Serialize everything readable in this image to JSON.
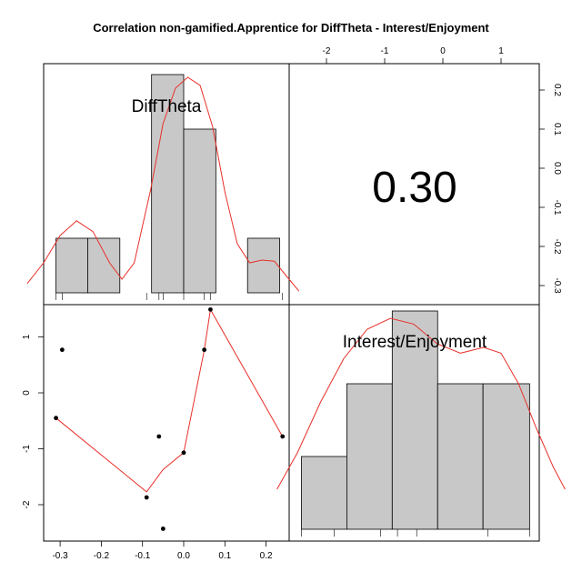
{
  "chart_data": {
    "type": "scatter-matrix",
    "title": "Correlation non-gamified.Apprentice for DiffTheta - Interest/Enjoyment",
    "variables": [
      "DiffTheta",
      "Interest/Enjoyment"
    ],
    "correlation": {
      "label": "0.30",
      "value": 0.3
    },
    "diff_theta_axis": {
      "ticks": [
        -0.3,
        -0.2,
        -0.1,
        0.0,
        0.1,
        0.2
      ],
      "tick_labels": [
        "-0.3",
        "-0.2",
        "-0.1",
        "0.0",
        "0.1",
        "0.2"
      ]
    },
    "interest_axis": {
      "ticks": [
        -2,
        -1,
        0,
        1
      ],
      "tick_labels": [
        "-2",
        "-1",
        "0",
        "1"
      ]
    },
    "scatter": {
      "x_label": "DiffTheta",
      "y_label": "Interest/Enjoyment",
      "points": [
        {
          "x": -0.31,
          "y": -0.45
        },
        {
          "x": -0.295,
          "y": 0.77
        },
        {
          "x": -0.09,
          "y": -1.87
        },
        {
          "x": -0.06,
          "y": -0.78
        },
        {
          "x": -0.05,
          "y": -2.43
        },
        {
          "x": 0.0,
          "y": -1.07
        },
        {
          "x": 0.05,
          "y": 0.77
        },
        {
          "x": 0.065,
          "y": 1.49
        },
        {
          "x": 0.24,
          "y": -0.78
        }
      ],
      "smooth_line": [
        {
          "x": -0.31,
          "y": -0.45
        },
        {
          "x": -0.09,
          "y": -1.77
        },
        {
          "x": -0.05,
          "y": -1.37
        },
        {
          "x": 0.0,
          "y": -1.07
        },
        {
          "x": 0.05,
          "y": 0.77
        },
        {
          "x": 0.065,
          "y": 1.49
        },
        {
          "x": 0.24,
          "y": -0.78
        }
      ]
    },
    "hist_diff_theta": {
      "bins": [
        [
          -0.31,
          -0.233
        ],
        [
          -0.233,
          -0.155
        ],
        [
          -0.155,
          -0.078
        ],
        [
          -0.078,
          0.0
        ],
        [
          0.0,
          0.078
        ],
        [
          0.078,
          0.155
        ],
        [
          0.155,
          0.233
        ]
      ],
      "counts": [
        1,
        1,
        0,
        4,
        3,
        0,
        1
      ],
      "rug": [
        -0.31,
        -0.295,
        -0.06,
        -0.05,
        0.0,
        0.05,
        0.065,
        0.24,
        -0.09
      ],
      "density": [
        {
          "x": -0.38,
          "y": 0.17
        },
        {
          "x": -0.34,
          "y": 0.55
        },
        {
          "x": -0.3,
          "y": 1.05
        },
        {
          "x": -0.26,
          "y": 1.32
        },
        {
          "x": -0.22,
          "y": 1.12
        },
        {
          "x": -0.18,
          "y": 0.55
        },
        {
          "x": -0.15,
          "y": 0.25
        },
        {
          "x": -0.12,
          "y": 0.55
        },
        {
          "x": -0.08,
          "y": 1.9
        },
        {
          "x": -0.05,
          "y": 3.1
        },
        {
          "x": -0.02,
          "y": 3.75
        },
        {
          "x": 0.01,
          "y": 3.95
        },
        {
          "x": 0.04,
          "y": 3.8
        },
        {
          "x": 0.07,
          "y": 3.05
        },
        {
          "x": 0.1,
          "y": 1.85
        },
        {
          "x": 0.13,
          "y": 0.9
        },
        {
          "x": 0.16,
          "y": 0.55
        },
        {
          "x": 0.19,
          "y": 0.6
        },
        {
          "x": 0.22,
          "y": 0.58
        },
        {
          "x": 0.25,
          "y": 0.3
        },
        {
          "x": 0.28,
          "y": 0.03
        }
      ]
    },
    "hist_interest": {
      "bins": [
        [
          -2.43,
          -1.65
        ],
        [
          -1.65,
          -0.87
        ],
        [
          -0.87,
          -0.09
        ],
        [
          -0.09,
          0.69
        ],
        [
          0.69,
          1.49
        ]
      ],
      "counts": [
        1,
        2,
        3,
        2,
        2
      ],
      "rug": [
        -2.43,
        -1.87,
        -1.07,
        -0.78,
        -0.45,
        0.77,
        1.49
      ],
      "density": [
        {
          "x": -2.85,
          "y": 0.55
        },
        {
          "x": -2.5,
          "y": 1.05
        },
        {
          "x": -2.1,
          "y": 1.75
        },
        {
          "x": -1.7,
          "y": 2.35
        },
        {
          "x": -1.3,
          "y": 2.75
        },
        {
          "x": -0.9,
          "y": 2.9
        },
        {
          "x": -0.5,
          "y": 2.82
        },
        {
          "x": -0.1,
          "y": 2.55
        },
        {
          "x": 0.3,
          "y": 2.42
        },
        {
          "x": 0.7,
          "y": 2.5
        },
        {
          "x": 1.0,
          "y": 2.42
        },
        {
          "x": 1.3,
          "y": 2.0
        },
        {
          "x": 1.6,
          "y": 1.4
        },
        {
          "x": 1.9,
          "y": 0.85
        },
        {
          "x": 2.1,
          "y": 0.55
        }
      ]
    }
  }
}
